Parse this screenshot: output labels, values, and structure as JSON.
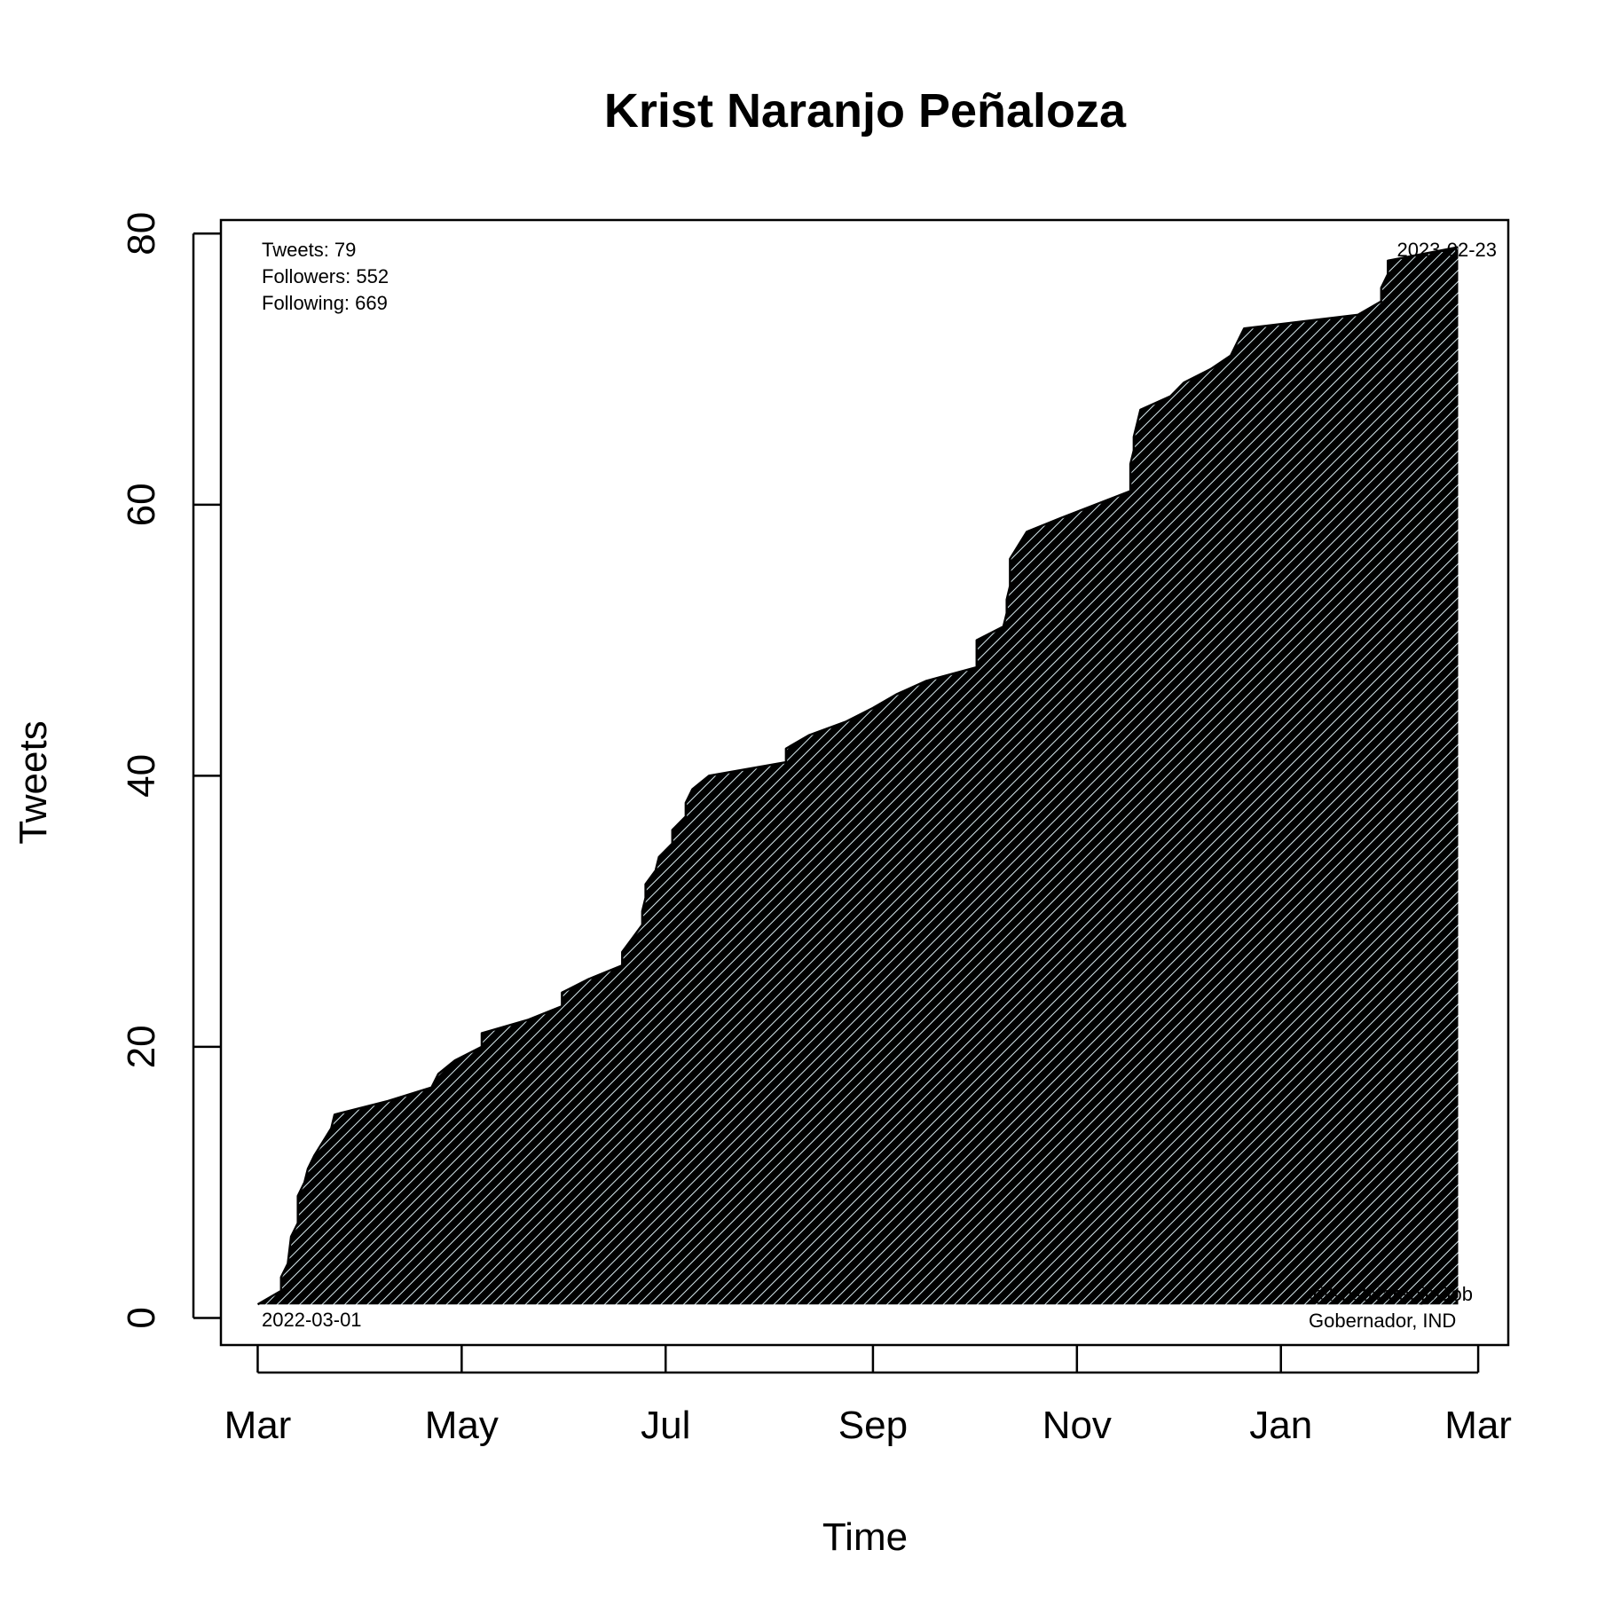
{
  "chart_data": {
    "type": "area",
    "title": "Krist Naranjo Peñaloza",
    "xlabel": "Time",
    "ylabel": "Tweets",
    "xlim": [
      "2022-02-18",
      "2023-03-10"
    ],
    "ylim": [
      -2,
      81
    ],
    "x_ticks": [
      {
        "date": "2022-03-01",
        "label": "Mar"
      },
      {
        "date": "2022-05-01",
        "label": "May"
      },
      {
        "date": "2022-07-01",
        "label": "Jul"
      },
      {
        "date": "2022-09-01",
        "label": "Sep"
      },
      {
        "date": "2022-11-01",
        "label": "Nov"
      },
      {
        "date": "2023-01-01",
        "label": "Jan"
      },
      {
        "date": "2023-03-01",
        "label": "Mar"
      }
    ],
    "y_ticks": [
      0,
      20,
      40,
      60,
      80
    ],
    "grid": false,
    "legend": "none",
    "fill_color": "#e6f2f5",
    "line_color": "#000000",
    "stats": [
      "Tweets: 79",
      "Followers: 552",
      "Following: 669"
    ],
    "start_label": "2022-03-01",
    "end_label": "2023-02-23",
    "account": [
      "@KristNaranjoGob",
      "Gobernador, IND"
    ],
    "series": [
      {
        "values": [
          [
            "2022-03-01",
            1
          ],
          [
            "2022-03-08",
            2
          ],
          [
            "2022-03-08",
            3
          ],
          [
            "2022-03-10",
            4
          ],
          [
            "2022-03-11",
            6
          ],
          [
            "2022-03-13",
            7
          ],
          [
            "2022-03-13",
            9
          ],
          [
            "2022-03-15",
            10
          ],
          [
            "2022-03-16",
            11
          ],
          [
            "2022-03-18",
            12
          ],
          [
            "2022-03-23",
            14
          ],
          [
            "2022-03-24",
            15
          ],
          [
            "2022-04-09",
            16
          ],
          [
            "2022-04-22",
            17
          ],
          [
            "2022-04-24",
            18
          ],
          [
            "2022-04-29",
            19
          ],
          [
            "2022-05-07",
            20
          ],
          [
            "2022-05-07",
            21
          ],
          [
            "2022-05-21",
            22
          ],
          [
            "2022-05-31",
            23
          ],
          [
            "2022-05-31",
            24
          ],
          [
            "2022-06-08",
            25
          ],
          [
            "2022-06-18",
            26
          ],
          [
            "2022-06-18",
            27
          ],
          [
            "2022-06-21",
            28
          ],
          [
            "2022-06-24",
            29
          ],
          [
            "2022-06-24",
            30
          ],
          [
            "2022-06-25",
            31
          ],
          [
            "2022-06-25",
            32
          ],
          [
            "2022-06-28",
            33
          ],
          [
            "2022-06-29",
            34
          ],
          [
            "2022-07-03",
            35
          ],
          [
            "2022-07-03",
            36
          ],
          [
            "2022-07-07",
            37
          ],
          [
            "2022-07-07",
            38
          ],
          [
            "2022-07-09",
            39
          ],
          [
            "2022-07-14",
            40
          ],
          [
            "2022-08-06",
            41
          ],
          [
            "2022-08-06",
            42
          ],
          [
            "2022-08-13",
            43
          ],
          [
            "2022-08-24",
            44
          ],
          [
            "2022-09-01",
            45
          ],
          [
            "2022-09-08",
            46
          ],
          [
            "2022-09-17",
            47
          ],
          [
            "2022-10-02",
            48
          ],
          [
            "2022-10-02",
            50
          ],
          [
            "2022-10-10",
            51
          ],
          [
            "2022-10-11",
            52
          ],
          [
            "2022-10-11",
            53
          ],
          [
            "2022-10-12",
            54
          ],
          [
            "2022-10-12",
            56
          ],
          [
            "2022-10-17",
            58
          ],
          [
            "2022-10-27",
            59
          ],
          [
            "2022-11-17",
            61
          ],
          [
            "2022-11-17",
            63
          ],
          [
            "2022-11-18",
            64
          ],
          [
            "2022-11-18",
            65
          ],
          [
            "2022-11-19",
            66
          ],
          [
            "2022-11-20",
            67
          ],
          [
            "2022-11-29",
            68
          ],
          [
            "2022-12-03",
            69
          ],
          [
            "2022-12-11",
            70
          ],
          [
            "2022-12-17",
            71
          ],
          [
            "2022-12-19",
            72
          ],
          [
            "2022-12-21",
            73
          ],
          [
            "2023-01-24",
            74
          ],
          [
            "2023-01-31",
            75
          ],
          [
            "2023-01-31",
            76
          ],
          [
            "2023-02-02",
            77
          ],
          [
            "2023-02-02",
            78
          ],
          [
            "2023-02-23",
            79
          ]
        ]
      }
    ]
  }
}
